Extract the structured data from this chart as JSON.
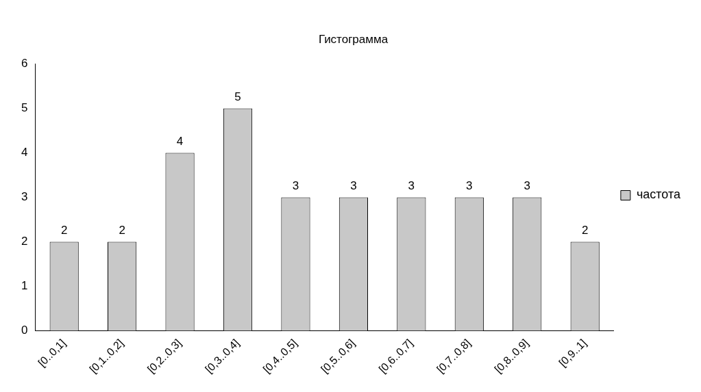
{
  "chart_data": {
    "type": "bar",
    "title": "Гистограмма",
    "categories": [
      "[0..0,1]",
      "[0,1..0,2]",
      "[0,2..0,3]",
      "[0,3..0,4]",
      "[0,4..0,5]",
      "[0,5..0,6]",
      "[0,6..0,7]",
      "[0,7..0,8]",
      "[0,8..0,9]",
      "[0,9..1]"
    ],
    "series": [
      {
        "name": "частота",
        "color": "#c8c8c8",
        "values": [
          2,
          2,
          4,
          5,
          3,
          3,
          3,
          3,
          3,
          2
        ]
      }
    ],
    "ylim": [
      0,
      6
    ],
    "yticks": [
      0,
      1,
      2,
      3,
      4,
      5,
      6
    ],
    "grid": false,
    "legend": "right",
    "data_labels": true
  }
}
